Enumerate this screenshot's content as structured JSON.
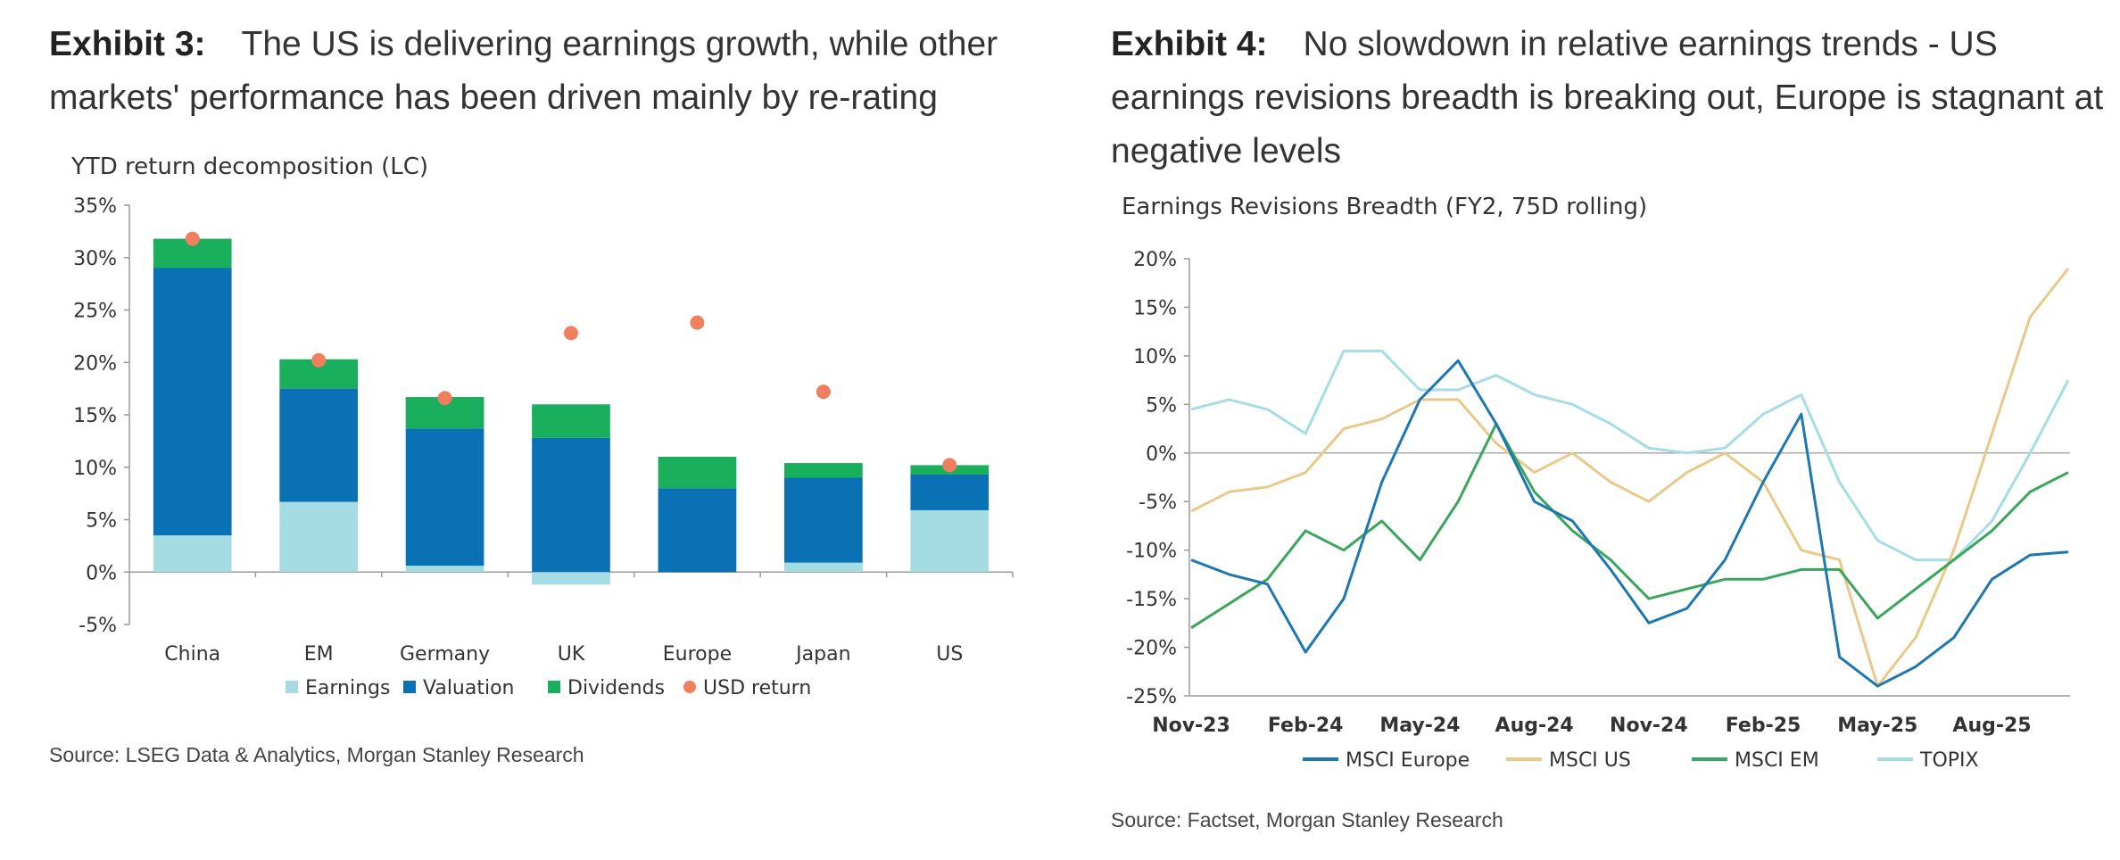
{
  "exhibit3": {
    "label": "Exhibit 3:",
    "title_line1": "The US is delivering earnings growth, while other",
    "title_line2": "markets' performance has been driven mainly by re-rating",
    "source": "Source: LSEG Data & Analytics, Morgan Stanley Research"
  },
  "exhibit4": {
    "label": "Exhibit 4:",
    "title_line1": "No slowdown in relative earnings trends - US",
    "title_line2": "earnings revisions breadth is breaking out, Europe is stagnant at",
    "title_line3": "negative levels",
    "source": "Source: Factset, Morgan Stanley Research"
  },
  "chart_data": [
    {
      "type": "bar",
      "title": "YTD return decomposition (LC)",
      "categories": [
        "China",
        "EM",
        "Germany",
        "UK",
        "Europe",
        "Japan",
        "US"
      ],
      "ylim": [
        -5,
        35
      ],
      "yticks": [
        "-5%",
        "0%",
        "5%",
        "10%",
        "15%",
        "20%",
        "25%",
        "30%",
        "35%"
      ],
      "ytick_values": [
        -5,
        0,
        5,
        10,
        15,
        20,
        25,
        30,
        35
      ],
      "stacked": true,
      "series": [
        {
          "name": "Earnings",
          "color": "#a5dbe3",
          "values": [
            3.5,
            6.7,
            0.6,
            -1.2,
            0.0,
            0.9,
            5.9
          ]
        },
        {
          "name": "Valuation",
          "color": "#0a72b4",
          "values": [
            25.5,
            10.8,
            13.1,
            12.8,
            8.0,
            8.1,
            3.4
          ]
        },
        {
          "name": "Dividends",
          "color": "#1aaf5d",
          "values": [
            2.8,
            2.8,
            3.0,
            3.2,
            3.0,
            1.4,
            0.9
          ]
        }
      ],
      "markers": {
        "name": "USD return",
        "color": "#f07f5f",
        "values": [
          31.8,
          20.2,
          16.6,
          22.8,
          23.8,
          17.2,
          10.2
        ]
      },
      "legend": [
        "Earnings",
        "Valuation",
        "Dividends",
        "USD return"
      ],
      "legend_position": "bottom",
      "grid": false
    },
    {
      "type": "line",
      "title": "Earnings Revisions Breadth (FY2, 75D rolling)",
      "x_ticks": [
        "Nov-23",
        "Feb-24",
        "May-24",
        "Aug-24",
        "Nov-24",
        "Feb-25",
        "May-25",
        "Aug-25"
      ],
      "x": [
        "2023-11-01",
        "2023-12-01",
        "2024-01-01",
        "2024-02-01",
        "2024-03-01",
        "2024-04-01",
        "2024-05-01",
        "2024-06-01",
        "2024-07-01",
        "2024-08-01",
        "2024-09-01",
        "2024-10-01",
        "2024-11-01",
        "2024-12-01",
        "2025-01-01",
        "2025-02-01",
        "2025-03-01",
        "2025-04-01",
        "2025-05-01",
        "2025-06-01",
        "2025-07-01",
        "2025-08-01",
        "2025-09-01",
        "2025-10-01"
      ],
      "ylim": [
        -25,
        20
      ],
      "yticks": [
        "-25%",
        "-20%",
        "-15%",
        "-10%",
        "-5%",
        "0%",
        "5%",
        "10%",
        "15%",
        "20%"
      ],
      "ytick_values": [
        -25,
        -20,
        -15,
        -10,
        -5,
        0,
        5,
        10,
        15,
        20
      ],
      "series": [
        {
          "name": "MSCI Europe",
          "color": "#1d77b0",
          "values": [
            -11,
            -12.5,
            -13.5,
            -20.5,
            -15,
            -3,
            5.5,
            9.5,
            3,
            -5,
            -7,
            -12,
            -17.5,
            -16,
            -11,
            -3,
            4,
            -21,
            -24,
            -22,
            -19,
            -13,
            -10.5,
            -10.2
          ]
        },
        {
          "name": "MSCI US",
          "color": "#e8c98a",
          "values": [
            -6,
            -4,
            -3.5,
            -2,
            2.5,
            3.5,
            5.5,
            5.5,
            1,
            -2,
            0,
            -3,
            -5,
            -2,
            0,
            -3,
            -10,
            -11,
            -24,
            -19,
            -10,
            2,
            14,
            19
          ]
        },
        {
          "name": "MSCI EM",
          "color": "#3aa65c",
          "values": [
            -18,
            -15.5,
            -13,
            -8,
            -10,
            -7,
            -11,
            -5,
            3,
            -4,
            -8,
            -11,
            -15,
            -14,
            -13,
            -13,
            -12,
            -12,
            -17,
            -14,
            -11,
            -8,
            -4,
            -2
          ]
        },
        {
          "name": "TOPIX",
          "color": "#a6dce6",
          "values": [
            4.5,
            5.5,
            4.5,
            2,
            10.5,
            10.5,
            6.5,
            6.5,
            8,
            6,
            5,
            3,
            0.5,
            0,
            0.5,
            4,
            6,
            -3,
            -9,
            -11,
            -11,
            -7,
            0,
            7.5
          ]
        }
      ],
      "legend": [
        "MSCI Europe",
        "MSCI US",
        "MSCI EM",
        "TOPIX"
      ],
      "legend_position": "bottom",
      "grid": false
    }
  ]
}
